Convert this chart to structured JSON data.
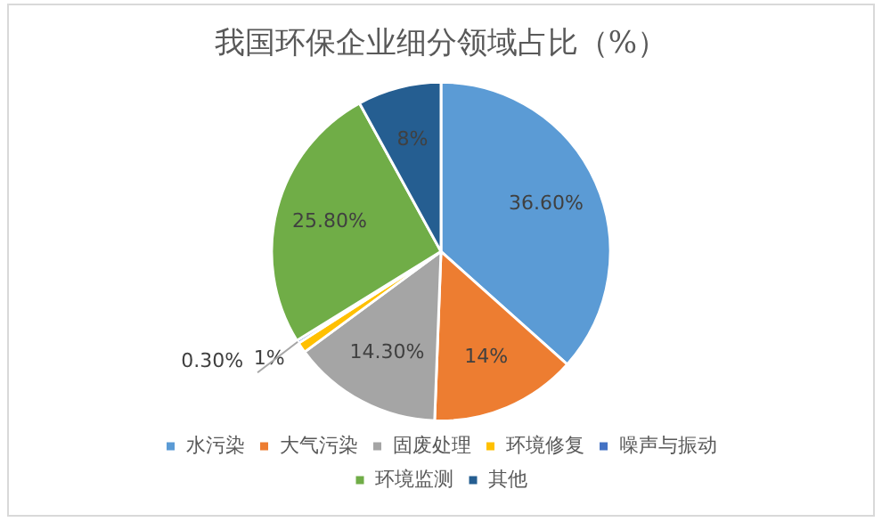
{
  "chart_data": {
    "type": "pie",
    "title": "我国环保企业细分领域占比（%）",
    "categories": [
      "水污染",
      "大气污染",
      "固废处理",
      "环境修复",
      "噪声与振动",
      "环境监测",
      "其他"
    ],
    "values": [
      36.6,
      14,
      14.3,
      1,
      0.3,
      25.8,
      8
    ],
    "value_labels": [
      "36.60%",
      "14%",
      "14.30%",
      "1%",
      "0.30%",
      "25.80%",
      "8%"
    ],
    "colors": [
      "#5b9bd5",
      "#ed7d31",
      "#a5a5a5",
      "#ffc000",
      "#4472c4",
      "#70ad47",
      "#255e91"
    ],
    "legend": "bottom"
  }
}
